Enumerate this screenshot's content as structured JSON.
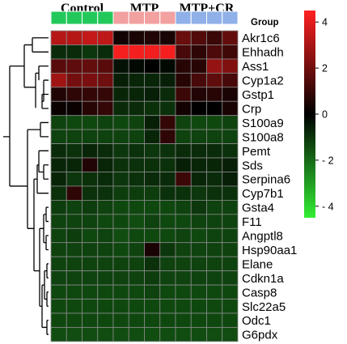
{
  "chart_data": {
    "type": "heatmap",
    "column_groups": [
      {
        "name": "Control",
        "count": 4,
        "color": "#22c95a"
      },
      {
        "name": "MTP",
        "count": 4,
        "color": "#f2a0a0"
      },
      {
        "name": "MTP+CR",
        "count": 4,
        "color": "#8fb0e8"
      }
    ],
    "annotation_row_label": "Group",
    "rows": [
      "Akr1c6",
      "Ehhadh",
      "Ass1",
      "Cyp1a2",
      "Gstp1",
      "Crp",
      "S100a9",
      "S100a8",
      "Pemt",
      "Sds",
      "Serpina6",
      "Cyp7b1",
      "Gsta4",
      "F11",
      "Angptl8",
      "Hsp90aa1",
      "Elane",
      "Cdkn1a",
      "Casp8",
      "Slc22a5",
      "Odc1",
      "G6pdx"
    ],
    "values": [
      [
        3.0,
        3.0,
        3.3,
        3.2,
        0.2,
        0.3,
        0.4,
        0.3,
        1.6,
        1.2,
        0.8,
        1.5
      ],
      [
        -0.6,
        -0.6,
        -0.8,
        -0.6,
        4.3,
        4.3,
        4.2,
        4.3,
        1.0,
        0.6,
        1.1,
        0.9
      ],
      [
        1.3,
        1.4,
        1.5,
        1.3,
        -0.2,
        -0.1,
        0.0,
        -0.1,
        0.5,
        0.5,
        2.4,
        2.0
      ],
      [
        2.6,
        1.8,
        1.9,
        1.7,
        -0.4,
        -0.5,
        -0.5,
        -0.4,
        0.5,
        1.0,
        1.4,
        1.0
      ],
      [
        0.4,
        0.6,
        0.7,
        0.7,
        -0.5,
        -0.5,
        -0.4,
        -0.6,
        0.8,
        0.4,
        0.5,
        0.3
      ],
      [
        0.1,
        0.1,
        0.5,
        0.7,
        -0.6,
        -0.6,
        -0.7,
        -0.7,
        0.2,
        0.0,
        0.0,
        0.3
      ],
      [
        -1.0,
        -1.1,
        -1.1,
        -1.0,
        -1.1,
        -1.0,
        -0.4,
        0.7,
        -1.0,
        -1.1,
        -1.1,
        -1.0
      ],
      [
        -1.0,
        -1.0,
        -1.0,
        -1.0,
        -1.0,
        -1.0,
        -0.5,
        0.6,
        -1.0,
        -1.0,
        -1.0,
        -1.0
      ],
      [
        -0.6,
        -0.7,
        -0.5,
        -0.6,
        -0.8,
        -0.7,
        -0.8,
        -0.7,
        -0.6,
        -0.6,
        -0.6,
        -0.7
      ],
      [
        -0.5,
        -0.5,
        0.4,
        -0.5,
        -0.7,
        -0.7,
        -0.7,
        -0.7,
        -0.4,
        -0.5,
        -0.5,
        -0.4
      ],
      [
        -0.5,
        -0.8,
        -0.7,
        -0.6,
        -0.8,
        -0.7,
        -0.6,
        -0.6,
        0.8,
        -0.5,
        -0.6,
        -0.4
      ],
      [
        -0.7,
        0.6,
        -0.7,
        -0.7,
        -0.9,
        -0.9,
        -0.9,
        -0.7,
        -0.7,
        -0.8,
        -0.7,
        -0.7
      ],
      [
        -0.9,
        -1.0,
        -0.9,
        -1.0,
        -1.1,
        -1.1,
        -1.1,
        -1.1,
        -1.0,
        -0.8,
        -1.0,
        -1.0
      ],
      [
        -1.0,
        -1.0,
        -1.0,
        -1.1,
        -1.1,
        -1.2,
        -1.0,
        -1.1,
        -1.1,
        -1.0,
        -1.0,
        -1.0
      ],
      [
        -1.0,
        -0.9,
        -1.1,
        -1.0,
        -1.2,
        -1.1,
        -1.1,
        -1.1,
        -1.0,
        -1.1,
        -1.0,
        -1.0
      ],
      [
        -1.0,
        -1.0,
        -1.0,
        -1.0,
        -1.1,
        -1.0,
        0.3,
        -0.8,
        -1.0,
        -1.0,
        -1.0,
        -1.0
      ],
      [
        -1.0,
        -1.0,
        -1.0,
        -1.0,
        -1.0,
        -1.0,
        -0.7,
        -1.0,
        -1.0,
        -1.0,
        -1.0,
        -1.0
      ],
      [
        -1.0,
        -1.0,
        -1.0,
        -1.0,
        -1.0,
        -1.0,
        -0.9,
        -1.0,
        -1.0,
        -1.0,
        -1.0,
        -1.0
      ],
      [
        -1.1,
        -1.1,
        -1.1,
        -1.1,
        -1.1,
        -1.1,
        -1.0,
        -1.1,
        -1.1,
        -1.1,
        -1.1,
        -1.1
      ],
      [
        -1.1,
        -1.1,
        -1.1,
        -1.1,
        -1.1,
        -1.1,
        -1.1,
        -1.1,
        -1.1,
        -1.1,
        -1.1,
        -1.1
      ],
      [
        -1.1,
        -1.1,
        -1.1,
        -1.1,
        -1.1,
        -1.1,
        -1.1,
        -1.1,
        -1.1,
        -1.1,
        -1.1,
        -1.1
      ],
      [
        -1.2,
        -1.2,
        -1.2,
        -1.2,
        -1.2,
        -1.2,
        -1.2,
        -1.2,
        -1.2,
        -1.2,
        -1.2,
        -1.2
      ]
    ],
    "colorbar": {
      "range": [
        -4.5,
        4.5
      ],
      "ticks": [
        {
          "value": 4,
          "label": "4"
        },
        {
          "value": 2,
          "label": "2"
        },
        {
          "value": 0,
          "label": "0"
        },
        {
          "value": -2,
          "label": "- 2"
        },
        {
          "value": -4,
          "label": "- 4"
        }
      ],
      "colors": {
        "low": "#33ee33",
        "mid": "#000000",
        "high": "#ff2020"
      }
    },
    "row_dendrogram": true,
    "grid": true,
    "legend_placement": "right"
  }
}
